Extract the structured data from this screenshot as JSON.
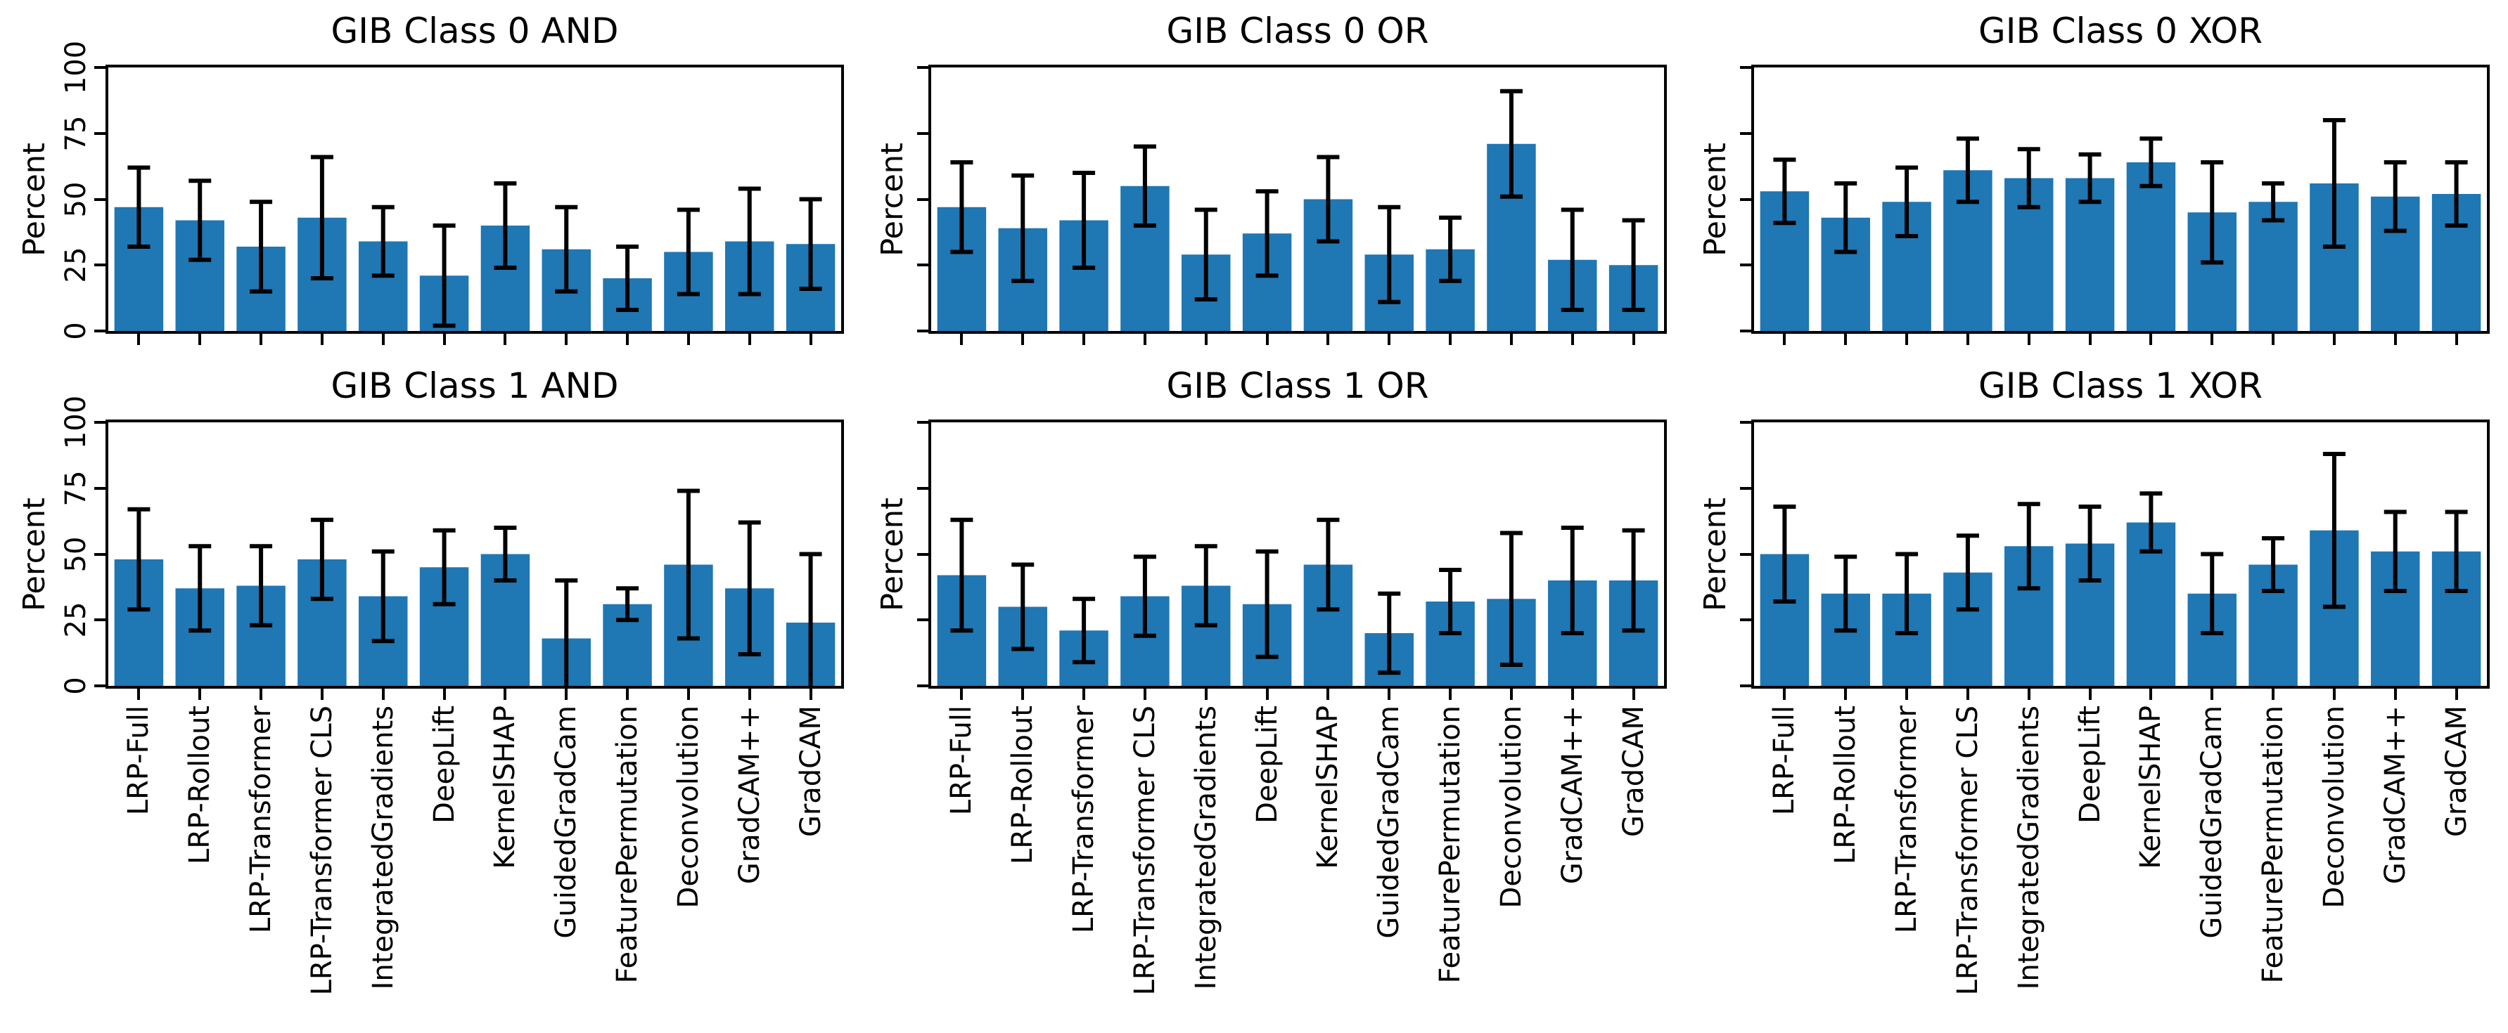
{
  "colors": {
    "bar": "#1f77b4",
    "error_bar": "#000000",
    "text": "#000000",
    "background": "#ffffff"
  },
  "chart_data": [
    {
      "type": "bar",
      "title": "GIB Class 0 AND",
      "xlabel": "",
      "ylabel": "Percent",
      "ylim": [
        0,
        100
      ],
      "yticks": [
        0,
        25,
        50,
        75,
        100
      ],
      "grid": false,
      "error_bars": true,
      "show_ytick_labels": true,
      "show_xtick_labels": false,
      "categories": [
        "LRP-Full",
        "LRP-Rollout",
        "LRP-Transformer",
        "LRP-Transformer CLS",
        "IntegratedGradients",
        "DeepLift",
        "KernelSHAP",
        "GuidedGradCam",
        "FeaturePermutation",
        "Deconvolution",
        "GradCAM++",
        "GradCAM"
      ],
      "values": [
        47,
        42,
        32,
        43,
        34,
        21,
        40,
        31,
        20,
        30,
        34,
        33
      ],
      "errors": [
        15,
        15,
        17,
        23,
        13,
        19,
        16,
        16,
        12,
        16,
        20,
        17
      ]
    },
    {
      "type": "bar",
      "title": "GIB Class 0 OR",
      "xlabel": "",
      "ylabel": "Percent",
      "ylim": [
        0,
        100
      ],
      "yticks": [
        0,
        25,
        50,
        75,
        100
      ],
      "grid": false,
      "error_bars": true,
      "show_ytick_labels": false,
      "show_xtick_labels": false,
      "categories": [
        "LRP-Full",
        "LRP-Rollout",
        "LRP-Transformer",
        "LRP-Transformer CLS",
        "IntegratedGradients",
        "DeepLift",
        "KernelSHAP",
        "GuidedGradCam",
        "FeaturePermutation",
        "Deconvolution",
        "GradCAM++",
        "GradCAM"
      ],
      "values": [
        47,
        39,
        42,
        55,
        29,
        37,
        50,
        29,
        31,
        71,
        27,
        25
      ],
      "errors": [
        17,
        20,
        18,
        15,
        17,
        16,
        16,
        18,
        12,
        20,
        19,
        17
      ]
    },
    {
      "type": "bar",
      "title": "GIB Class 0 XOR",
      "xlabel": "",
      "ylabel": "Percent",
      "ylim": [
        0,
        100
      ],
      "yticks": [
        0,
        25,
        50,
        75,
        100
      ],
      "grid": false,
      "error_bars": true,
      "show_ytick_labels": false,
      "show_xtick_labels": false,
      "categories": [
        "LRP-Full",
        "LRP-Rollout",
        "LRP-Transformer",
        "LRP-Transformer CLS",
        "IntegratedGradients",
        "DeepLift",
        "KernelSHAP",
        "GuidedGradCam",
        "FeaturePermutation",
        "Deconvolution",
        "GradCAM++",
        "GradCAM"
      ],
      "values": [
        53,
        43,
        49,
        61,
        58,
        58,
        64,
        45,
        49,
        56,
        51,
        52
      ],
      "errors": [
        12,
        13,
        13,
        12,
        11,
        9,
        9,
        19,
        7,
        24,
        13,
        12
      ]
    },
    {
      "type": "bar",
      "title": "GIB Class 1 AND",
      "xlabel": "",
      "ylabel": "Percent",
      "ylim": [
        0,
        100
      ],
      "yticks": [
        0,
        25,
        50,
        75,
        100
      ],
      "grid": false,
      "error_bars": true,
      "show_ytick_labels": true,
      "show_xtick_labels": true,
      "categories": [
        "LRP-Full",
        "LRP-Rollout",
        "LRP-Transformer",
        "LRP-Transformer CLS",
        "IntegratedGradients",
        "DeepLift",
        "KernelSHAP",
        "GuidedGradCam",
        "FeaturePermutation",
        "Deconvolution",
        "GradCAM++",
        "GradCAM"
      ],
      "values": [
        48,
        37,
        38,
        48,
        34,
        45,
        50,
        18,
        31,
        46,
        37,
        24
      ],
      "errors": [
        19,
        16,
        15,
        15,
        17,
        14,
        10,
        22,
        6,
        28,
        25,
        26
      ]
    },
    {
      "type": "bar",
      "title": "GIB Class 1 OR",
      "xlabel": "",
      "ylabel": "Percent",
      "ylim": [
        0,
        100
      ],
      "yticks": [
        0,
        25,
        50,
        75,
        100
      ],
      "grid": false,
      "error_bars": true,
      "show_ytick_labels": false,
      "show_xtick_labels": true,
      "categories": [
        "LRP-Full",
        "LRP-Rollout",
        "LRP-Transformer",
        "LRP-Transformer CLS",
        "IntegratedGradients",
        "DeepLift",
        "KernelSHAP",
        "GuidedGradCam",
        "FeaturePermutation",
        "Deconvolution",
        "GradCAM++",
        "GradCAM"
      ],
      "values": [
        42,
        30,
        21,
        34,
        38,
        31,
        46,
        20,
        32,
        33,
        40,
        40
      ],
      "errors": [
        21,
        16,
        12,
        15,
        15,
        20,
        17,
        15,
        12,
        25,
        20,
        19
      ]
    },
    {
      "type": "bar",
      "title": "GIB Class 1 XOR",
      "xlabel": "",
      "ylabel": "Percent",
      "ylim": [
        0,
        100
      ],
      "yticks": [
        0,
        25,
        50,
        75,
        100
      ],
      "grid": false,
      "error_bars": true,
      "show_ytick_labels": false,
      "show_xtick_labels": true,
      "categories": [
        "LRP-Full",
        "LRP-Rollout",
        "LRP-Transformer",
        "LRP-Transformer CLS",
        "IntegratedGradients",
        "DeepLift",
        "KernelSHAP",
        "GuidedGradCam",
        "FeaturePermutation",
        "Deconvolution",
        "GradCAM++",
        "GradCAM"
      ],
      "values": [
        50,
        35,
        35,
        43,
        53,
        54,
        62,
        35,
        46,
        59,
        51,
        51
      ],
      "errors": [
        18,
        14,
        15,
        14,
        16,
        14,
        11,
        15,
        10,
        29,
        15,
        15
      ]
    }
  ]
}
